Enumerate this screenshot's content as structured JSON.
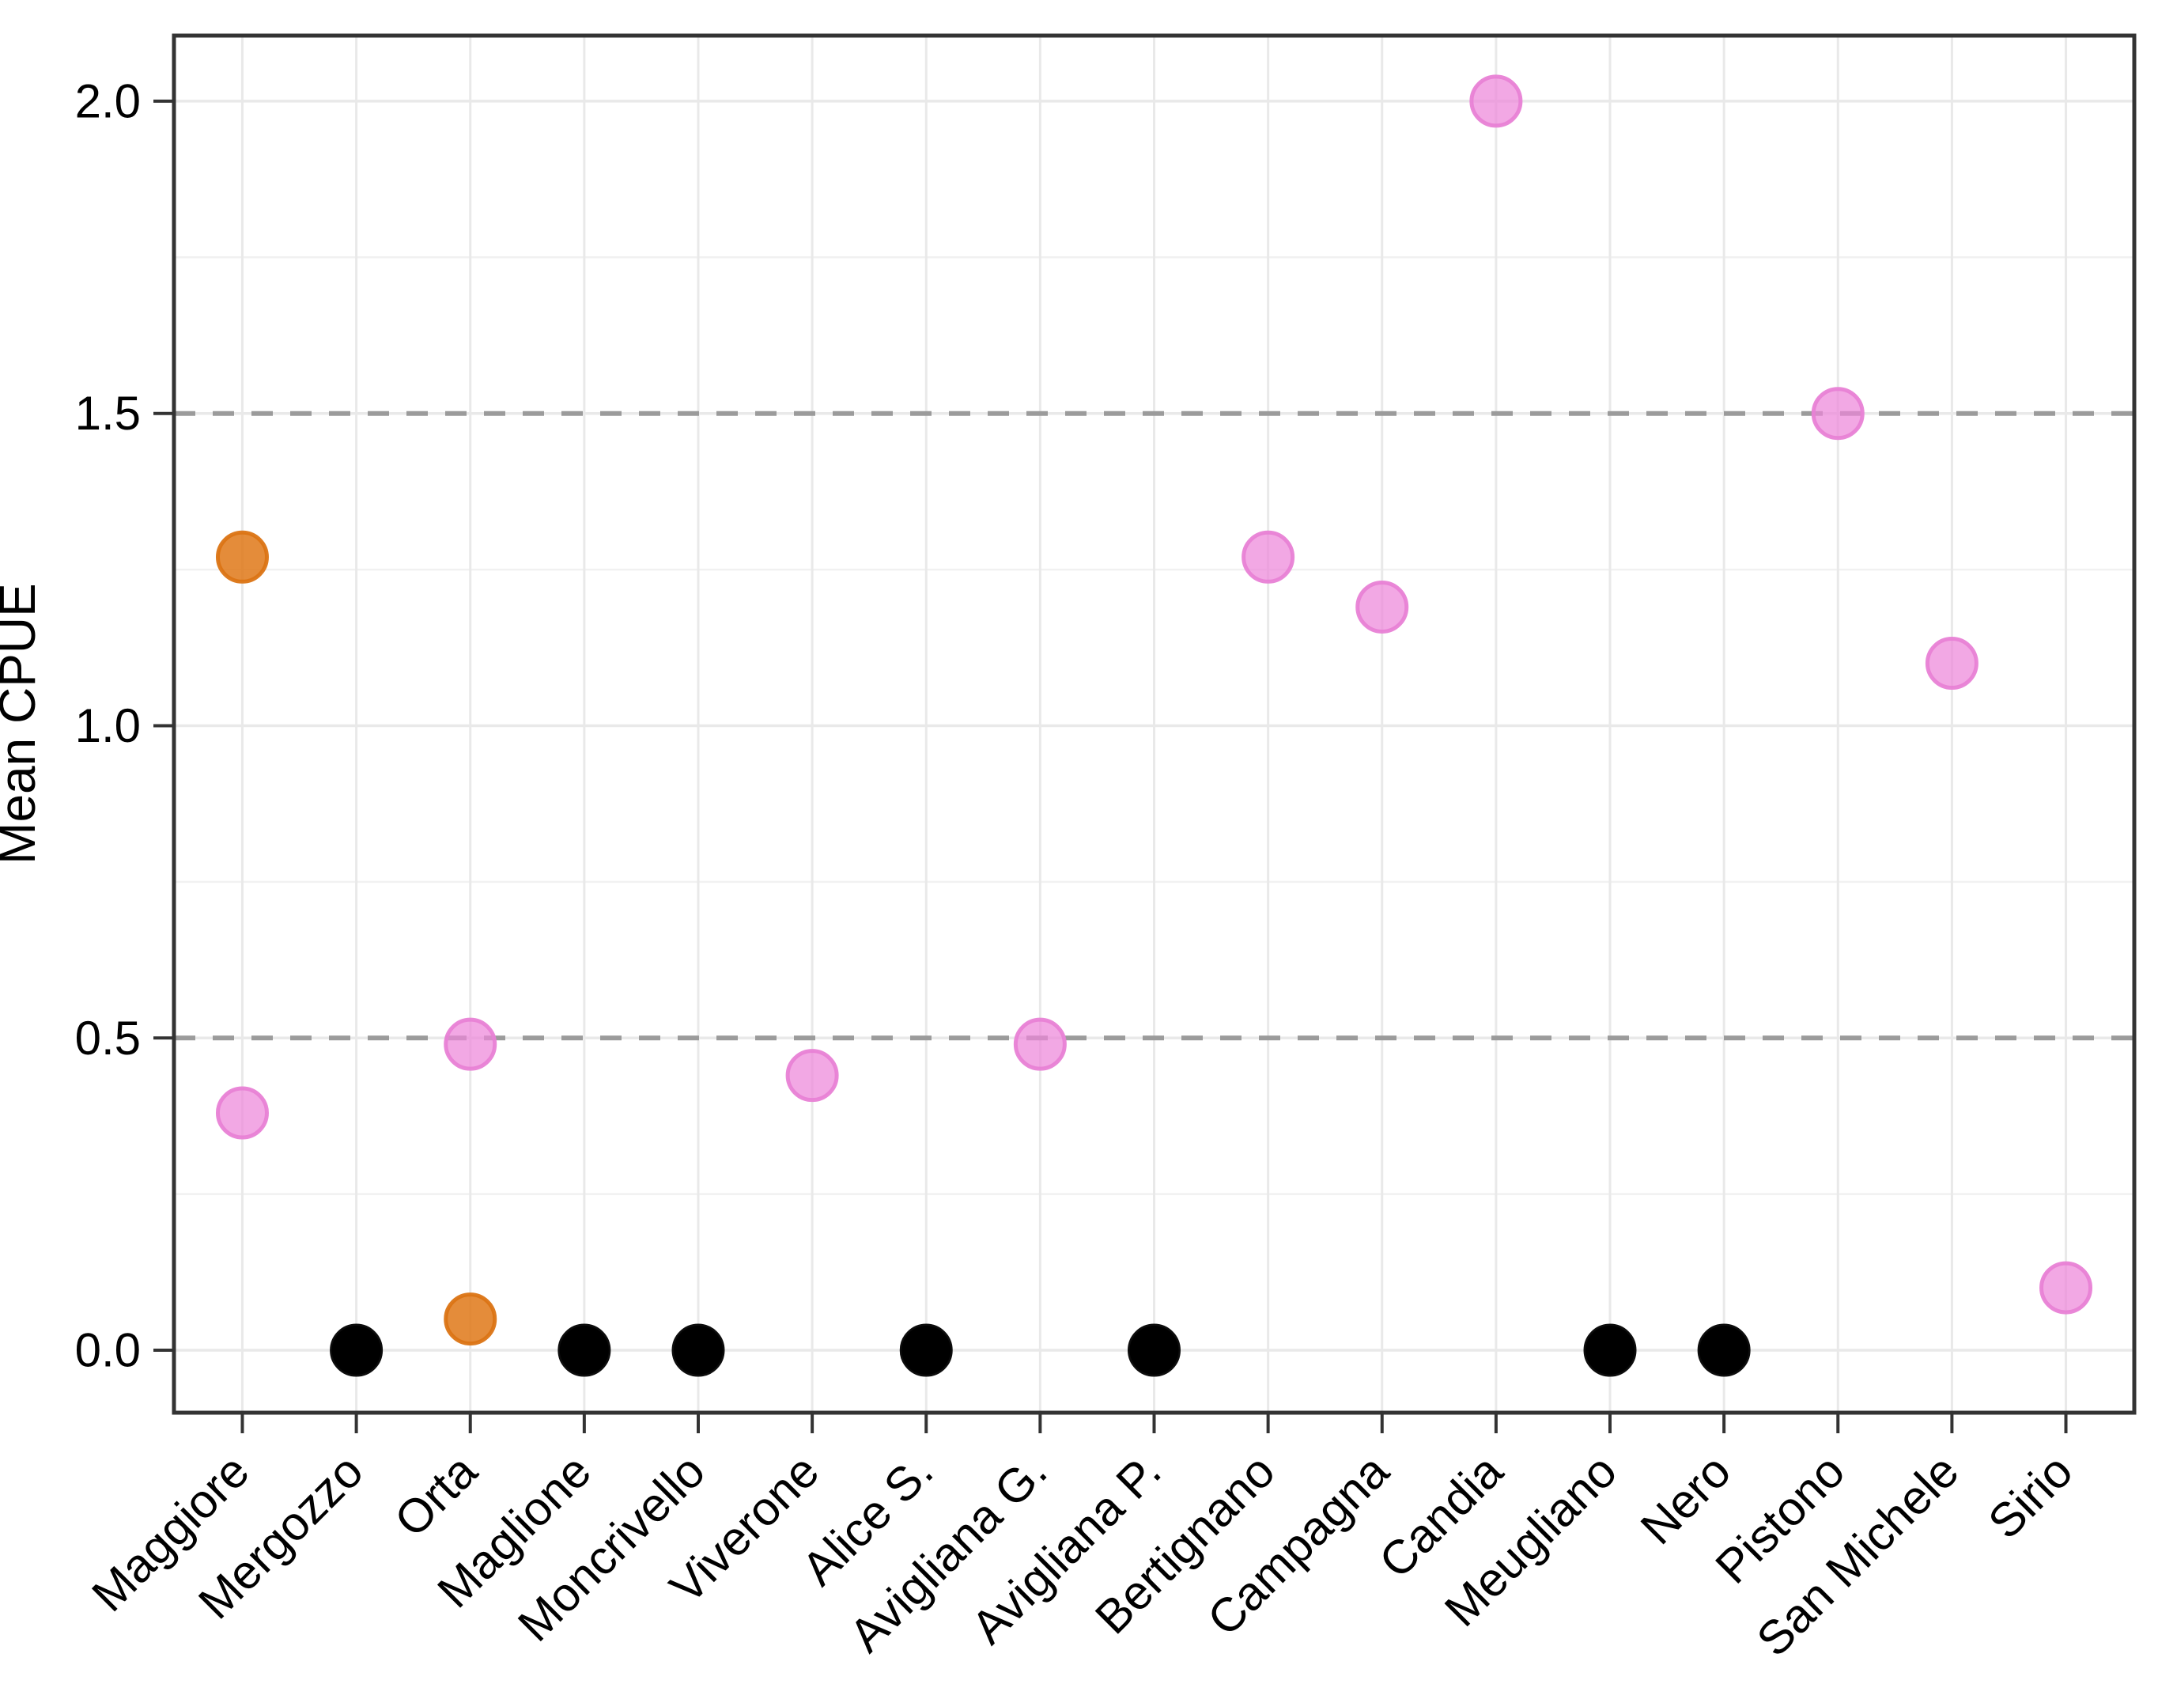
{
  "chart_data": {
    "type": "scatter",
    "title": "",
    "xlabel": "",
    "ylabel": "Mean CPUE",
    "ylim": [
      -0.1,
      2.105
    ],
    "yticks": [
      0.0,
      0.5,
      1.0,
      1.5,
      2.0
    ],
    "ytick_labels": [
      "0.0",
      "0.5",
      "1.0",
      "1.5",
      "2.0"
    ],
    "minor_yticks": [
      0.25,
      0.75,
      1.25,
      1.75
    ],
    "grid": "on",
    "legend": "none",
    "reference_lines": [
      {
        "value": 0.5,
        "style": "dashed",
        "color": "#9B9B9B"
      },
      {
        "value": 1.5,
        "style": "dashed",
        "color": "#9B9B9B"
      }
    ],
    "categories": [
      "Maggiore",
      "Mergozzo",
      "Orta",
      "Maglione",
      "Moncrivello",
      "Viverone",
      "Alice S.",
      "Avigliana G.",
      "Avigliana P.",
      "Bertignano",
      "Campagna",
      "Candia",
      "Meugliano",
      "Nero",
      "Pistono",
      "San Michele",
      "Sirio"
    ],
    "series": [
      {
        "name": "black-markers",
        "color": "#000000",
        "stroke": "#000000",
        "fill_opacity": 1.0,
        "points": [
          {
            "category": "Mergozzo",
            "value": 0.0
          },
          {
            "category": "Maglione",
            "value": 0.0
          },
          {
            "category": "Moncrivello",
            "value": 0.0
          },
          {
            "category": "Alice S.",
            "value": 0.0
          },
          {
            "category": "Avigliana P.",
            "value": 0.0
          },
          {
            "category": "Meugliano",
            "value": 0.0
          },
          {
            "category": "Nero",
            "value": 0.0
          }
        ]
      },
      {
        "name": "orange-markers",
        "color": "#DF7818",
        "stroke": "#DB7414",
        "fill_opacity": 0.85,
        "points": [
          {
            "category": "Maggiore",
            "value": 1.27
          },
          {
            "category": "Orta",
            "value": 0.05
          }
        ]
      },
      {
        "name": "violet-markers",
        "color": "#ED87DA",
        "stroke": "#E881D5",
        "fill_opacity": 0.72,
        "points": [
          {
            "category": "Maggiore",
            "value": 0.38
          },
          {
            "category": "Orta",
            "value": 0.49
          },
          {
            "category": "Viverone",
            "value": 0.44
          },
          {
            "category": "Avigliana G.",
            "value": 0.49
          },
          {
            "category": "Bertignano",
            "value": 1.27
          },
          {
            "category": "Campagna",
            "value": 1.19
          },
          {
            "category": "Candia",
            "value": 2.0
          },
          {
            "category": "Pistono",
            "value": 1.5
          },
          {
            "category": "San Michele",
            "value": 1.1
          },
          {
            "category": "Sirio",
            "value": 0.1
          }
        ]
      }
    ],
    "style": {
      "background": "#FFFFFF",
      "panel_border_color": "#333333",
      "major_grid_color": "#E9E9E9",
      "minor_grid_color": "#F1F1F1",
      "tick_color": "#333333",
      "text_color": "#000000"
    }
  }
}
